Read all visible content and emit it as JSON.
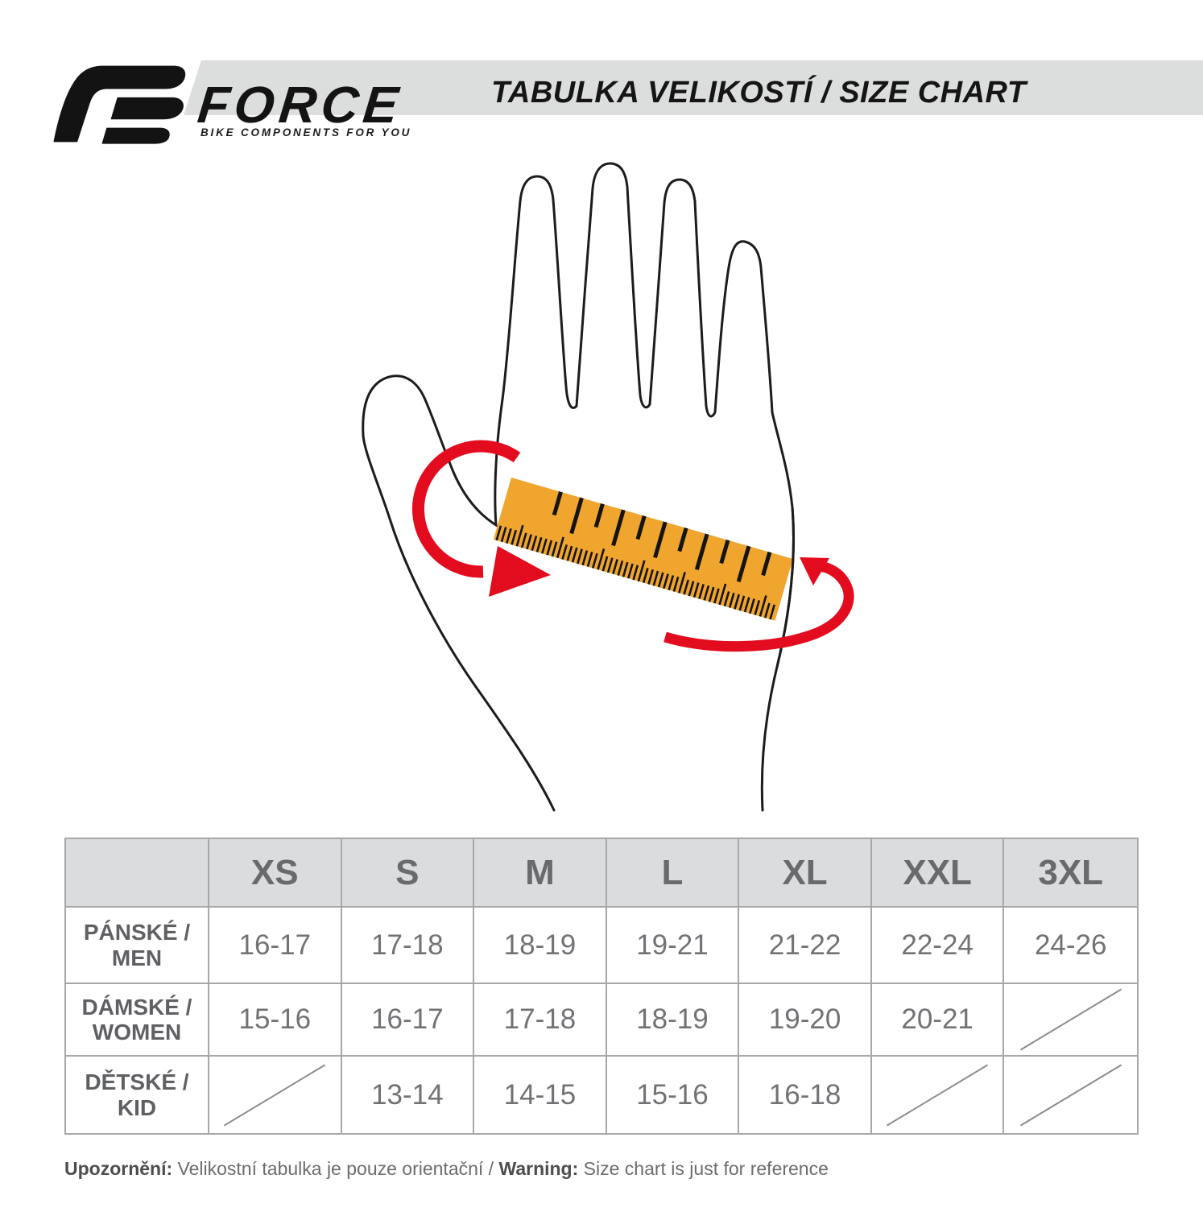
{
  "logo": {
    "brand": "FORCE",
    "tagline": "BIKE COMPONENTS FOR YOU"
  },
  "header": {
    "title": "TABULKA VELIKOSTÍ / SIZE CHART"
  },
  "illustration": {
    "alt": "hand with ruler measuring palm circumference",
    "ruler_color": "#f0a52e",
    "arrow_color": "#e30b1e",
    "outline_color": "#1c1c1c",
    "tick_color": "#141414"
  },
  "size_table": {
    "columns": [
      "XS",
      "S",
      "M",
      "L",
      "XL",
      "XXL",
      "3XL"
    ],
    "rows": [
      {
        "label": "PÁNSKÉ /\nMEN",
        "values": [
          "16-17",
          "17-18",
          "18-19",
          "19-21",
          "21-22",
          "22-24",
          "24-26"
        ]
      },
      {
        "label": "DÁMSKÉ /\nWOMEN",
        "values": [
          "15-16",
          "16-17",
          "17-18",
          "18-19",
          "19-20",
          "20-21",
          "/"
        ]
      },
      {
        "label": "DĚTSKÉ /\nKID",
        "values": [
          "/",
          "13-14",
          "14-15",
          "15-16",
          "16-18",
          "/",
          "/"
        ]
      }
    ],
    "na_marker": "/"
  },
  "footer": {
    "label_cs": "Upozornění: ",
    "text_cs": "Velikostní tabulka je pouze orientační / ",
    "label_en": "Warning: ",
    "text_en": "Size chart is just for reference"
  }
}
